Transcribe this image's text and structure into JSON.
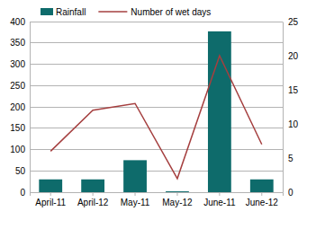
{
  "chart_data": {
    "type": "bar",
    "categories": [
      "April-11",
      "April-12",
      "May-11",
      "May-12",
      "June-11",
      "June-12"
    ],
    "series": [
      {
        "name": "Rainfall",
        "type": "bar",
        "color": "#0e6b6b",
        "values": [
          30,
          30,
          75,
          2,
          377,
          30
        ]
      },
      {
        "name": "Number of wet days",
        "type": "line",
        "color": "#a53f3f",
        "axis": "y2",
        "values": [
          6,
          12,
          13,
          2,
          20,
          7
        ]
      }
    ],
    "ylim": [
      0,
      400
    ],
    "yticks": [
      0,
      50,
      100,
      150,
      200,
      250,
      300,
      350,
      400
    ],
    "y2lim": [
      0,
      25
    ],
    "y2ticks": [
      0,
      5,
      10,
      15,
      20,
      25
    ],
    "grid": true,
    "legend": "top-left"
  }
}
